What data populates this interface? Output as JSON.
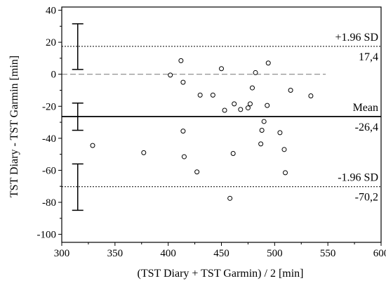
{
  "chart_data": {
    "type": "scatter",
    "title": "",
    "xlabel": "(TST Diary + TST Garmin) / 2 [min]",
    "ylabel": "TST Diary - TST Garmin [min]",
    "xlim": [
      300,
      600
    ],
    "ylim": [
      -105,
      42
    ],
    "x_ticks": [
      300,
      350,
      400,
      450,
      500,
      550,
      600
    ],
    "y_ticks": [
      40,
      20,
      0,
      -20,
      -40,
      -60,
      -80,
      -100
    ],
    "grid": false,
    "points": [
      {
        "x": 329,
        "y": -44.5
      },
      {
        "x": 377,
        "y": -49
      },
      {
        "x": 402,
        "y": -0.5
      },
      {
        "x": 412,
        "y": 8.5
      },
      {
        "x": 414,
        "y": -5
      },
      {
        "x": 414,
        "y": -35.5
      },
      {
        "x": 415,
        "y": -51.5
      },
      {
        "x": 427,
        "y": -61
      },
      {
        "x": 430,
        "y": -13
      },
      {
        "x": 442,
        "y": -13
      },
      {
        "x": 450,
        "y": 3.5
      },
      {
        "x": 453,
        "y": -22.5
      },
      {
        "x": 458,
        "y": -77.5
      },
      {
        "x": 461,
        "y": -49.5
      },
      {
        "x": 462,
        "y": -18.5
      },
      {
        "x": 468,
        "y": -22
      },
      {
        "x": 475,
        "y": -21
      },
      {
        "x": 477,
        "y": -18.5
      },
      {
        "x": 479,
        "y": -8.5
      },
      {
        "x": 482,
        "y": 1
      },
      {
        "x": 487,
        "y": -43.5
      },
      {
        "x": 488,
        "y": -35
      },
      {
        "x": 490,
        "y": -29.5
      },
      {
        "x": 493,
        "y": -19.5
      },
      {
        "x": 494,
        "y": 7
      },
      {
        "x": 505,
        "y": -36.5
      },
      {
        "x": 509,
        "y": -47
      },
      {
        "x": 510,
        "y": -61.5
      },
      {
        "x": 515,
        "y": -10
      },
      {
        "x": 534,
        "y": -13.5
      }
    ],
    "reference_lines": [
      {
        "id": "upper-loa",
        "y": 17.4,
        "style": "dotted",
        "label": "+1.96 SD",
        "value_label": "17,4"
      },
      {
        "id": "zero",
        "y": 0,
        "style": "dashed",
        "label": "",
        "value_label": ""
      },
      {
        "id": "mean",
        "y": -26.4,
        "style": "solid",
        "label": "Mean",
        "value_label": "-26,4"
      },
      {
        "id": "lower-loa",
        "y": -70.2,
        "style": "dotted",
        "label": "-1.96 SD",
        "value_label": "-70,2"
      }
    ],
    "zero_line_x_end": 548,
    "confidence_intervals": [
      {
        "x": 315,
        "low": 3,
        "high": 31.5
      },
      {
        "x": 315,
        "low": -35,
        "high": -18
      },
      {
        "x": 315,
        "low": -85,
        "high": -56
      }
    ]
  }
}
